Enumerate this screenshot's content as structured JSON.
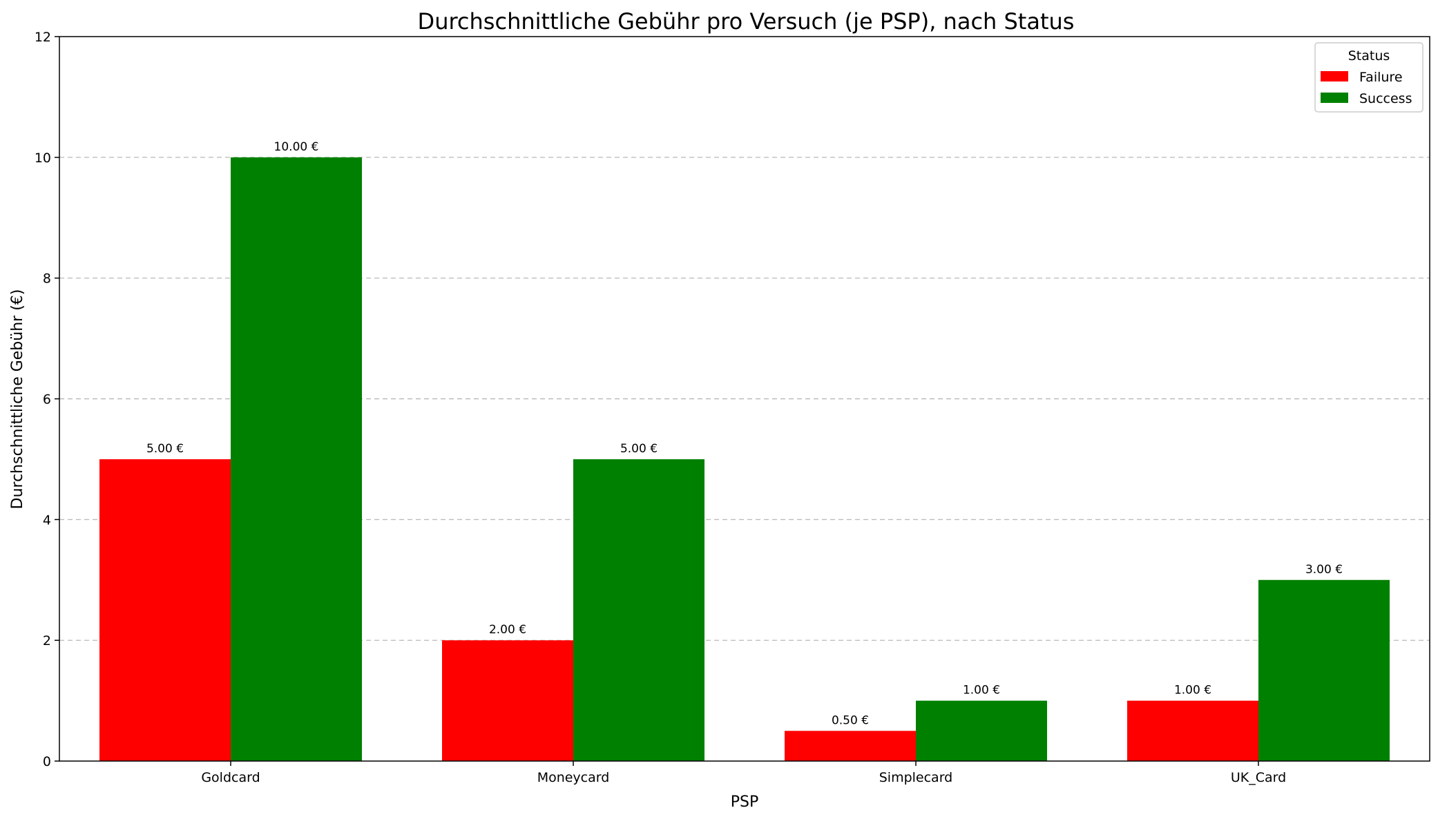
{
  "chart_data": {
    "type": "bar",
    "title": "Durchschnittliche Gebühr pro Versuch (je PSP), nach Status",
    "xlabel": "PSP",
    "ylabel": "Durchschnittliche Gebühr (€)",
    "categories": [
      "Goldcard",
      "Moneycard",
      "Simplecard",
      "UK_Card"
    ],
    "series": [
      {
        "name": "Failure",
        "color": "#ff0000",
        "values": [
          5.0,
          2.0,
          0.5,
          1.0
        ],
        "labels": [
          "5.00 €",
          "2.00 €",
          "0.50 €",
          "1.00 €"
        ]
      },
      {
        "name": "Success",
        "color": "#008000",
        "values": [
          10.0,
          5.0,
          1.0,
          3.0
        ],
        "labels": [
          "10.00 €",
          "5.00 €",
          "1.00 €",
          "3.00 €"
        ]
      }
    ],
    "ylim": [
      0,
      12
    ],
    "yticks": [
      0,
      2,
      4,
      6,
      8,
      10,
      12
    ],
    "grid": "y-dashed",
    "legend": {
      "title": "Status",
      "position": "top-right"
    }
  }
}
